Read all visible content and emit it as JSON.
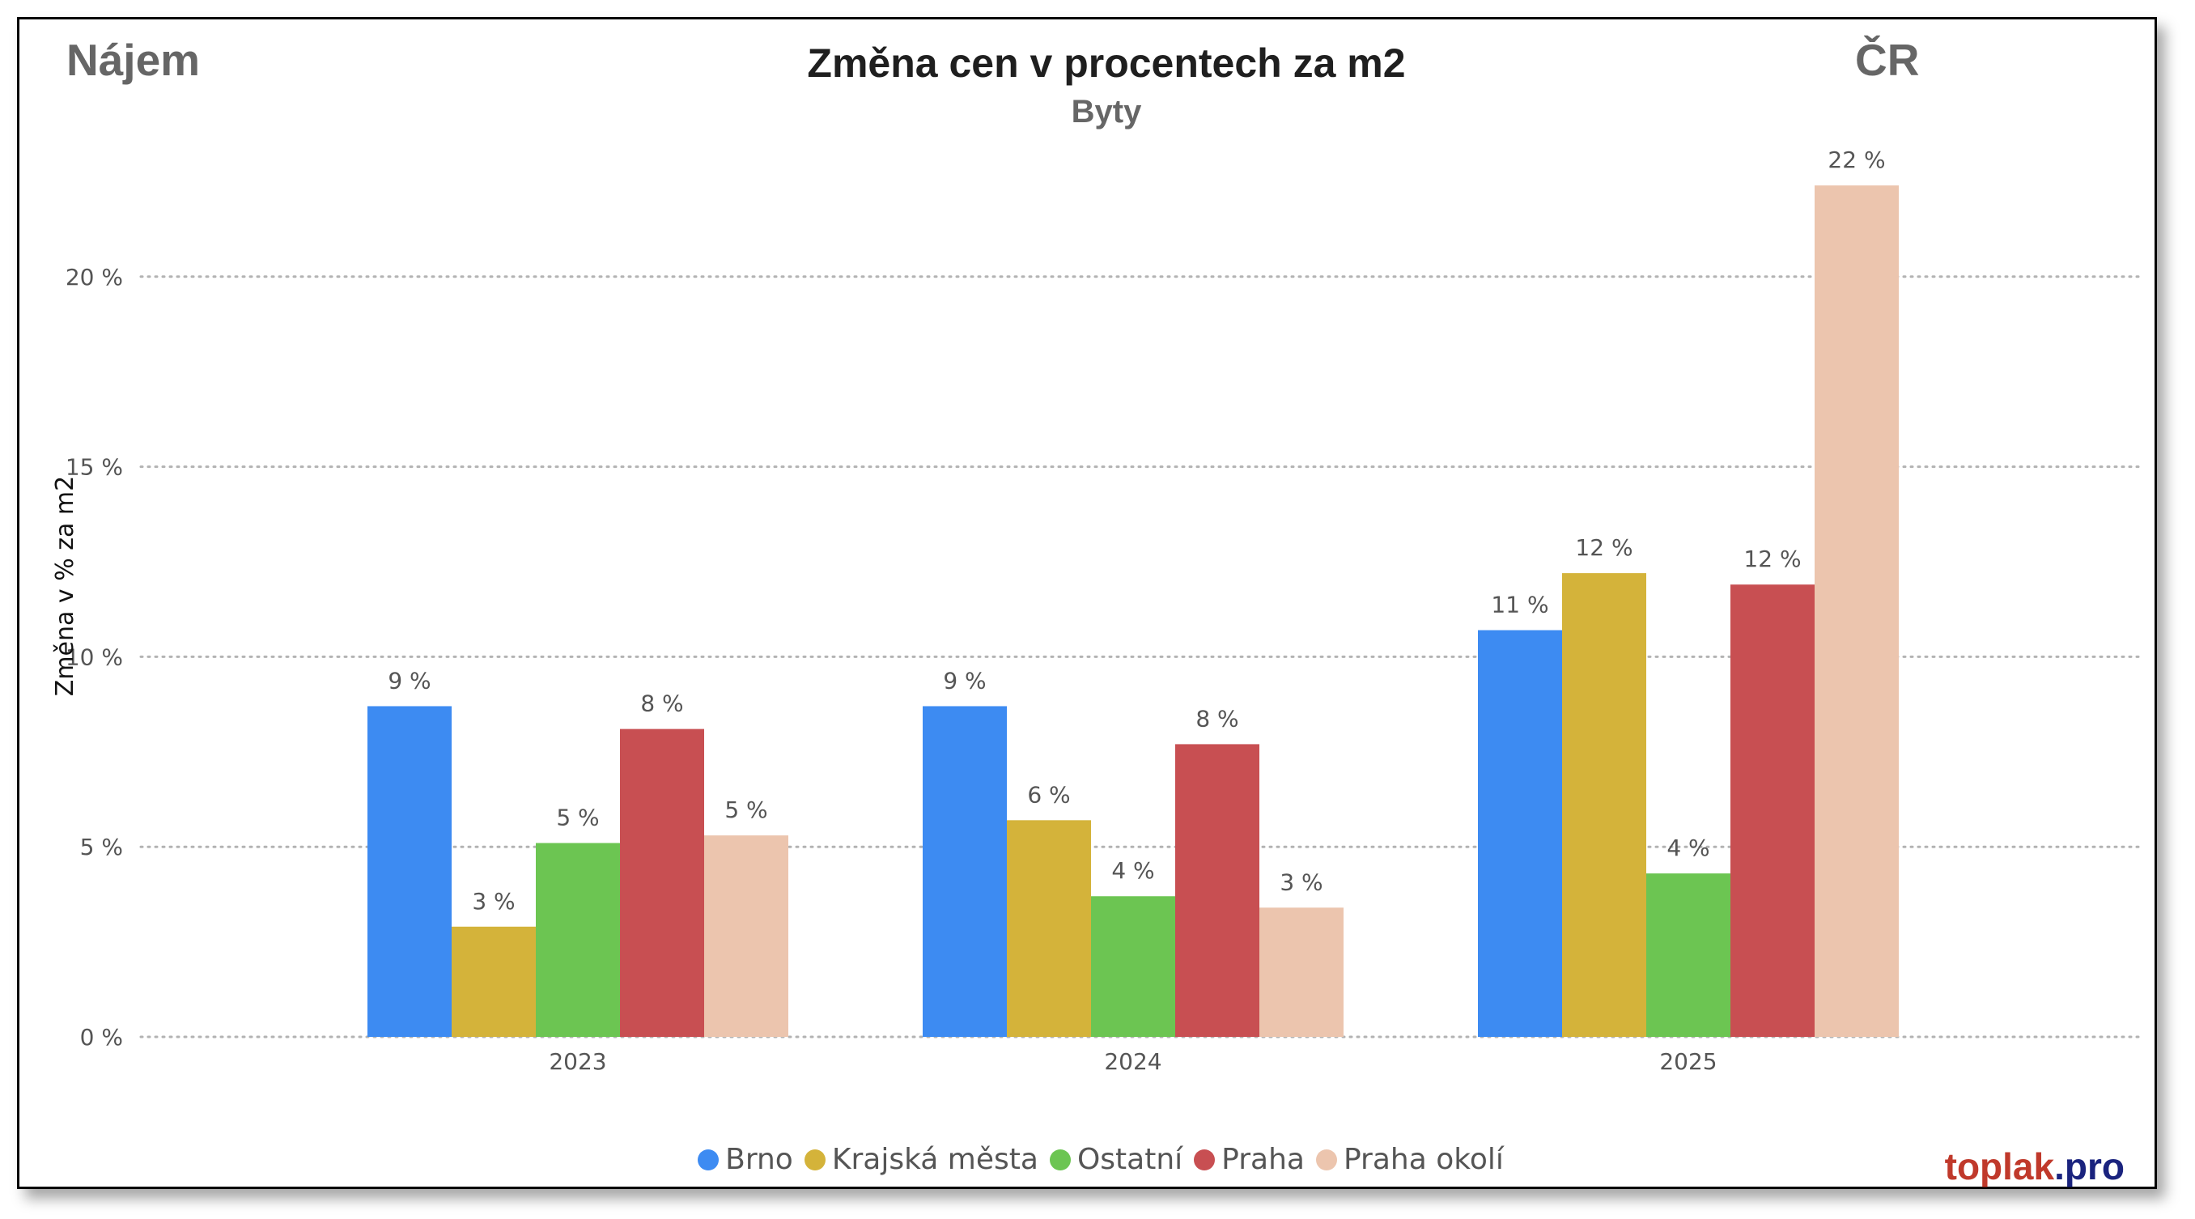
{
  "header": {
    "left_label": "Nájem",
    "right_label": "ČR"
  },
  "brand": {
    "name": "toplak",
    "suffix": ".pro",
    "name_color": "#c0392b",
    "suffix_color": "#1a237e"
  },
  "chart_data": {
    "type": "bar",
    "title": "Změna cen v procentech za m2",
    "subtitle": "Byty",
    "xlabel": "",
    "ylabel": "Změna v % za m2",
    "ylim": [
      0,
      24
    ],
    "yticks": [
      0,
      5,
      10,
      15,
      20
    ],
    "ytick_labels": [
      "0 %",
      "5 %",
      "10 %",
      "15 %",
      "20 %"
    ],
    "grid": true,
    "legend_position": "bottom-center",
    "categories": [
      "2023",
      "2024",
      "2025"
    ],
    "series": [
      {
        "name": "Brno",
        "color": "#3d8bf2",
        "values": [
          8.7,
          8.7,
          10.7
        ],
        "labels": [
          "9 %",
          "9 %",
          "11 %"
        ]
      },
      {
        "name": "Krajská města",
        "color": "#d4b33a",
        "values": [
          2.9,
          5.7,
          12.2
        ],
        "labels": [
          "3 %",
          "6 %",
          "12 %"
        ]
      },
      {
        "name": "Ostatní",
        "color": "#6cc552",
        "values": [
          5.1,
          3.7,
          4.3
        ],
        "labels": [
          "5 %",
          "4 %",
          "4 %"
        ]
      },
      {
        "name": "Praha",
        "color": "#c84f52",
        "values": [
          8.1,
          7.7,
          11.9
        ],
        "labels": [
          "8 %",
          "8 %",
          "12 %"
        ]
      },
      {
        "name": "Praha okolí",
        "color": "#ecc5ae",
        "values": [
          5.3,
          3.4,
          22.4
        ],
        "labels": [
          "5 %",
          "3 %",
          "22 %"
        ]
      }
    ]
  }
}
